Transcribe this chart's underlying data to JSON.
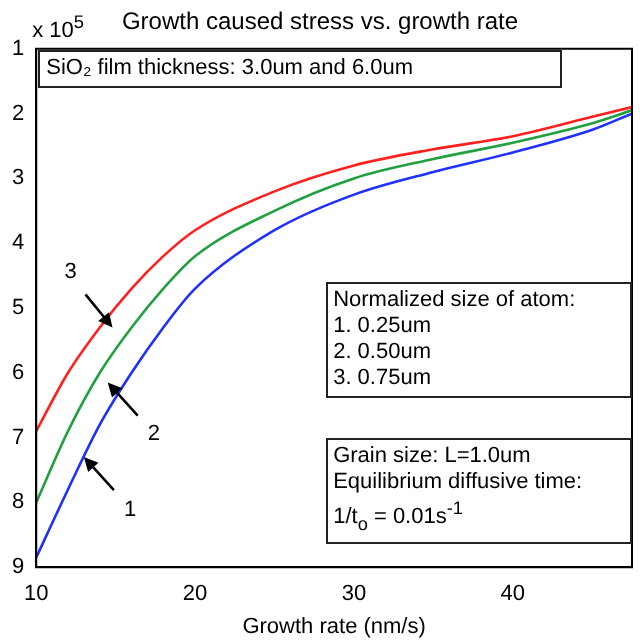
{
  "chart_data": {
    "type": "line",
    "title": "Growth caused stress vs. growth rate",
    "xlabel": "Growth rate (nm/s)",
    "x": [
      10,
      12,
      14,
      16,
      18,
      20,
      25,
      30,
      35,
      40,
      45,
      47.5
    ],
    "series": [
      {
        "color": "#ff2020",
        "values": [
          6.9,
          6.0,
          5.3,
          4.7,
          4.2,
          3.8,
          3.2,
          2.8,
          2.55,
          2.35,
          2.05,
          1.9
        ]
      },
      {
        "color": "#20a040",
        "values": [
          8.0,
          6.9,
          6.0,
          5.3,
          4.7,
          4.2,
          3.5,
          3.0,
          2.7,
          2.45,
          2.15,
          1.95
        ]
      },
      {
        "color": "#2030ff",
        "values": [
          8.85,
          7.8,
          6.8,
          6.0,
          5.3,
          4.7,
          3.8,
          3.25,
          2.9,
          2.6,
          2.25,
          2.0
        ]
      }
    ],
    "xlim": [
      10,
      47.5
    ],
    "xticks": [
      10,
      20,
      30,
      40
    ],
    "ylim": [
      9,
      1
    ],
    "yticks": [
      1,
      2,
      3,
      4,
      5,
      6,
      7,
      8,
      9
    ],
    "grid": false,
    "legend": false,
    "marker": "none",
    "line_style": "solid",
    "annotations": [
      "x 10$^{5}$",
      "SiO₂ film thickness: 3.0um and 6.0um",
      "Normalized size of atom:\n1. 0.25um\n2. 0.50um\n3. 0.75um",
      "Grain size: L=1.0um\nEquilibrium diffusive time:\n1/t$_{o}$ = 0.01s$^{-1}$",
      {
        "text": "3",
        "x": 14.8,
        "y": 5.3
      },
      {
        "text": "2",
        "x": 14.5,
        "y": 6.15
      },
      {
        "text": "1",
        "x": 13,
        "y": 7.3
      }
    ]
  }
}
